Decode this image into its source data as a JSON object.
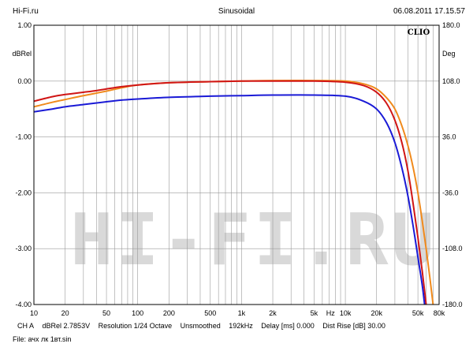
{
  "header": {
    "site": "Hi-Fi.ru",
    "mode": "Sinusoidal",
    "timestamp": "06.08.2011 17.15.57"
  },
  "brand": "CLIO",
  "watermark": "HI-FI.RU",
  "colors": {
    "series_red": "#d01515",
    "series_blue": "#1a1ad6",
    "series_orange": "#f08a1c",
    "grid": "#9a9a9a",
    "watermark": "#d9d9d9"
  },
  "footer": {
    "channel": "CH A",
    "level": "dBRel 2.7853V",
    "resolution": "Resolution 1/24 Octave",
    "smoothing": "Unsmoothed",
    "rate": "192kHz",
    "delay": "Delay [ms] 0.000",
    "dist_rise": "Dist Rise [dB] 30.00",
    "file": "File: ачх лк 1вт.sin"
  },
  "chart_data": {
    "type": "line",
    "title": "",
    "xlabel": "Hz",
    "ylabel": "dBRel",
    "y2label": "Deg",
    "x_scale": "log",
    "xlim": [
      10,
      80000
    ],
    "ylim": [
      -4,
      1
    ],
    "y2lim": [
      -180,
      180
    ],
    "grid": true,
    "x_ticks": [
      {
        "value": 10,
        "label": "10"
      },
      {
        "value": 20,
        "label": "20"
      },
      {
        "value": 50,
        "label": "50"
      },
      {
        "value": 100,
        "label": "100"
      },
      {
        "value": 200,
        "label": "200"
      },
      {
        "value": 500,
        "label": "500"
      },
      {
        "value": 1000,
        "label": "1k"
      },
      {
        "value": 2000,
        "label": "2k"
      },
      {
        "value": 5000,
        "label": "5k"
      },
      {
        "value": 10000,
        "label": "10k"
      },
      {
        "value": 20000,
        "label": "20k"
      },
      {
        "value": 50000,
        "label": "50k"
      },
      {
        "value": 80000,
        "label": "80k"
      }
    ],
    "y_ticks": [
      {
        "value": 1,
        "label": "1.00"
      },
      {
        "value": 0,
        "label": "0.00"
      },
      {
        "value": -1,
        "label": "-1.00"
      },
      {
        "value": -2,
        "label": "-2.00"
      },
      {
        "value": -3,
        "label": "-3.00"
      },
      {
        "value": -4,
        "label": "-4.00"
      }
    ],
    "y2_ticks": [
      {
        "value": 180,
        "label": "180.0"
      },
      {
        "value": 108,
        "label": "108.0"
      },
      {
        "value": 36,
        "label": "36.0"
      },
      {
        "value": -36,
        "label": "-36.0"
      },
      {
        "value": -108,
        "label": "-108.0"
      },
      {
        "value": -180,
        "label": "-180.0"
      }
    ],
    "series": [
      {
        "color": "#d01515",
        "points": [
          [
            10,
            -0.36
          ],
          [
            15,
            -0.28
          ],
          [
            20,
            -0.24
          ],
          [
            30,
            -0.2
          ],
          [
            40,
            -0.17
          ],
          [
            50,
            -0.14
          ],
          [
            70,
            -0.1
          ],
          [
            100,
            -0.07
          ],
          [
            200,
            -0.03
          ],
          [
            500,
            -0.01
          ],
          [
            1000,
            0.0
          ],
          [
            2000,
            0.0
          ],
          [
            5000,
            0.0
          ],
          [
            10000,
            -0.02
          ],
          [
            15000,
            -0.08
          ],
          [
            20000,
            -0.2
          ],
          [
            25000,
            -0.4
          ],
          [
            30000,
            -0.7
          ],
          [
            35000,
            -1.1
          ],
          [
            40000,
            -1.6
          ],
          [
            45000,
            -2.2
          ],
          [
            50000,
            -2.8
          ],
          [
            55000,
            -3.4
          ],
          [
            60000,
            -4.0
          ]
        ]
      },
      {
        "color": "#1a1ad6",
        "points": [
          [
            10,
            -0.55
          ],
          [
            15,
            -0.5
          ],
          [
            20,
            -0.46
          ],
          [
            30,
            -0.42
          ],
          [
            50,
            -0.37
          ],
          [
            70,
            -0.34
          ],
          [
            100,
            -0.32
          ],
          [
            200,
            -0.29
          ],
          [
            500,
            -0.27
          ],
          [
            1000,
            -0.26
          ],
          [
            2000,
            -0.25
          ],
          [
            5000,
            -0.25
          ],
          [
            10000,
            -0.27
          ],
          [
            15000,
            -0.36
          ],
          [
            20000,
            -0.5
          ],
          [
            25000,
            -0.75
          ],
          [
            30000,
            -1.1
          ],
          [
            35000,
            -1.55
          ],
          [
            40000,
            -2.05
          ],
          [
            45000,
            -2.6
          ],
          [
            50000,
            -3.15
          ],
          [
            55000,
            -3.65
          ],
          [
            58000,
            -4.0
          ]
        ]
      },
      {
        "color": "#f08a1c",
        "points": [
          [
            10,
            -0.46
          ],
          [
            15,
            -0.38
          ],
          [
            20,
            -0.33
          ],
          [
            30,
            -0.26
          ],
          [
            50,
            -0.18
          ],
          [
            70,
            -0.12
          ],
          [
            100,
            -0.07
          ],
          [
            200,
            -0.03
          ],
          [
            500,
            -0.01
          ],
          [
            1000,
            0.0
          ],
          [
            2000,
            0.01
          ],
          [
            5000,
            0.01
          ],
          [
            10000,
            0.0
          ],
          [
            15000,
            -0.05
          ],
          [
            20000,
            -0.14
          ],
          [
            25000,
            -0.3
          ],
          [
            30000,
            -0.5
          ],
          [
            35000,
            -0.8
          ],
          [
            40000,
            -1.15
          ],
          [
            45000,
            -1.55
          ],
          [
            50000,
            -2.0
          ],
          [
            55000,
            -2.5
          ],
          [
            60000,
            -3.0
          ],
          [
            65000,
            -3.5
          ],
          [
            70000,
            -4.0
          ]
        ]
      }
    ]
  }
}
